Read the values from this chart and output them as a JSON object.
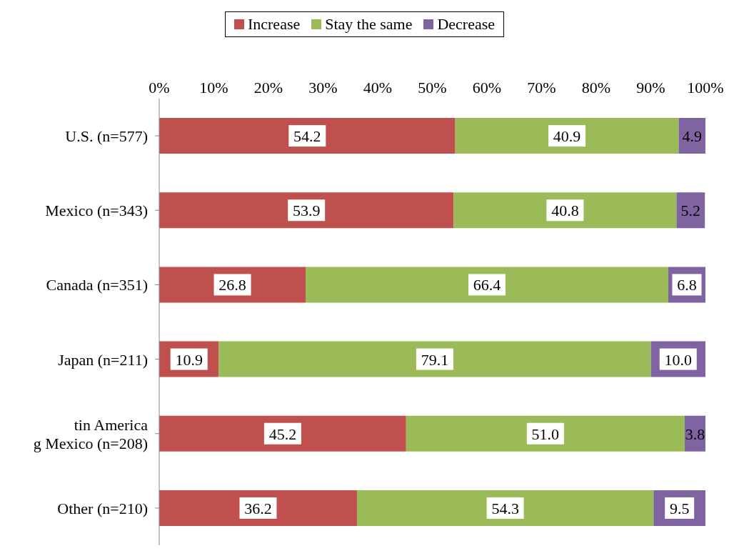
{
  "chart_data": {
    "type": "bar",
    "orientation": "horizontal",
    "stacked": true,
    "categories": [
      "U.S. (n=577)",
      "Mexico (n=343)",
      "Canada (n=351)",
      "Japan (n=211)",
      "tin America\ng Mexico (n=208)",
      "Other (n=210)"
    ],
    "series": [
      {
        "name": "Increase",
        "color": "#c0504d",
        "values": [
          54.2,
          53.9,
          26.8,
          10.9,
          45.2,
          36.2
        ],
        "value_labels": [
          "54.2",
          "53.9",
          "26.8",
          "10.9",
          "45.2",
          "36.2"
        ]
      },
      {
        "name": "Stay the same",
        "color": "#9bbb59",
        "values": [
          40.9,
          40.8,
          66.4,
          79.1,
          51.0,
          54.3
        ],
        "value_labels": [
          "40.9",
          "40.8",
          "66.4",
          "79.1",
          "51.0",
          "54.3"
        ]
      },
      {
        "name": "Decrease",
        "color": "#8064a2",
        "values": [
          4.9,
          5.2,
          6.8,
          10.0,
          3.8,
          9.5
        ],
        "value_labels": [
          "4.9",
          "5.2",
          "6.8",
          "10.0",
          "3.8",
          "9.5"
        ]
      }
    ],
    "xlim": [
      0,
      100
    ],
    "xticks": [
      {
        "value": 0,
        "label": "0%"
      },
      {
        "value": 10,
        "label": "10%"
      },
      {
        "value": 20,
        "label": "20%"
      },
      {
        "value": 30,
        "label": "30%"
      },
      {
        "value": 40,
        "label": "40%"
      },
      {
        "value": 50,
        "label": "50%"
      },
      {
        "value": 60,
        "label": "60%"
      },
      {
        "value": 70,
        "label": "70%"
      },
      {
        "value": 80,
        "label": "80%"
      },
      {
        "value": 90,
        "label": "90%"
      },
      {
        "value": 100,
        "label": "100%"
      }
    ],
    "grid": false,
    "legend": "top"
  }
}
